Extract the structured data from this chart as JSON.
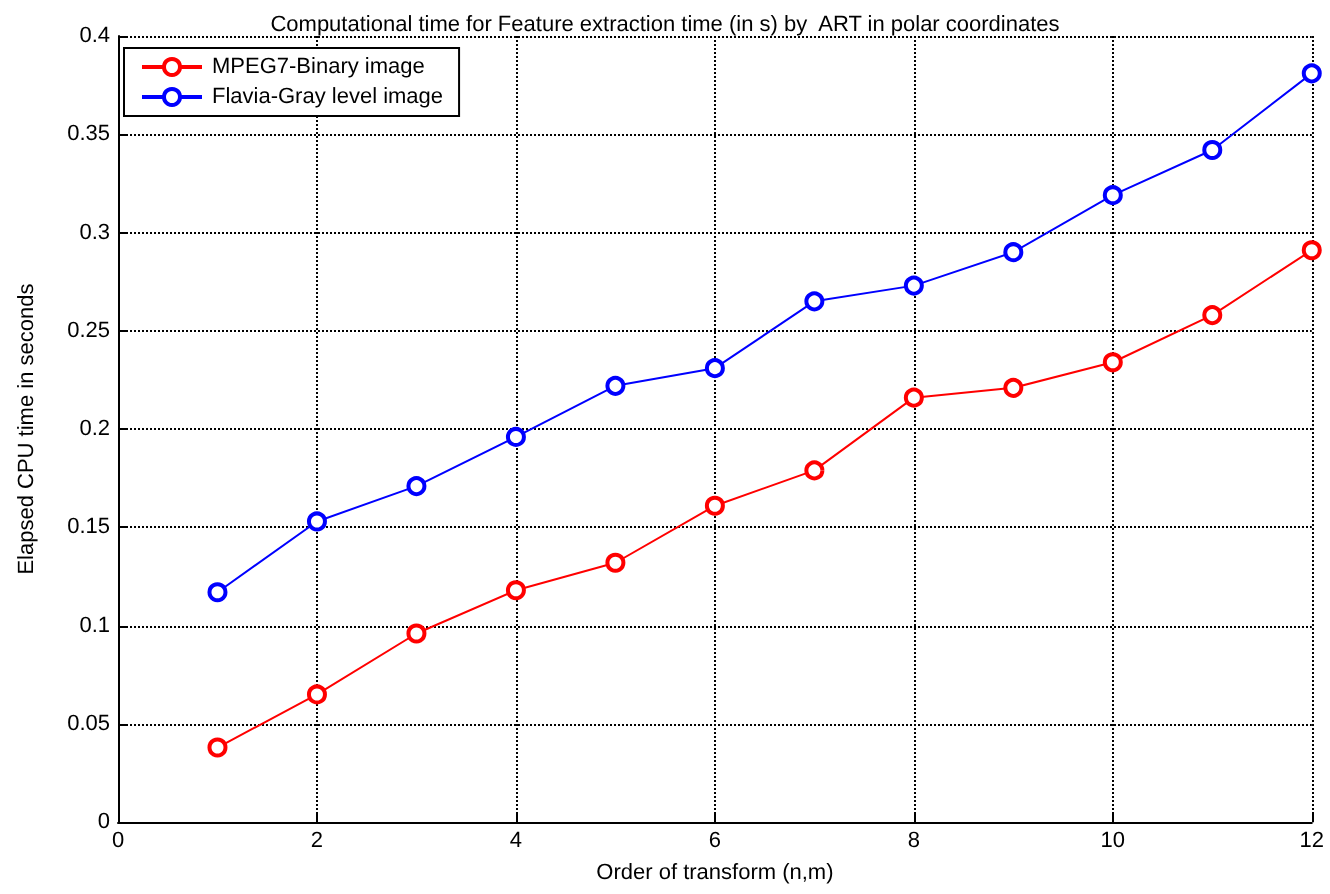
{
  "chart_data": {
    "type": "line",
    "title": "Computational time for Feature extraction time (in s) by  ART in polar coordinates",
    "xlabel": "Order of transform (n,m)",
    "ylabel": "Elapsed CPU time in seconds",
    "x": [
      1,
      2,
      3,
      4,
      5,
      6,
      7,
      8,
      9,
      10,
      11,
      12
    ],
    "series": [
      {
        "name": "MPEG7-Binary image",
        "color": "#ff0000",
        "values": [
          0.038,
          0.065,
          0.096,
          0.118,
          0.132,
          0.161,
          0.179,
          0.216,
          0.221,
          0.234,
          0.258,
          0.291
        ]
      },
      {
        "name": "Flavia-Gray level image",
        "color": "#0000ff",
        "values": [
          0.117,
          0.153,
          0.171,
          0.196,
          0.222,
          0.231,
          0.265,
          0.273,
          0.29,
          0.319,
          0.342,
          0.381
        ]
      }
    ],
    "xlim": [
      0,
      12
    ],
    "xticks": [
      0,
      2,
      4,
      6,
      8,
      10,
      12
    ],
    "ylim": [
      0,
      0.4
    ],
    "yticks": [
      0,
      0.05,
      0.1,
      0.15,
      0.2,
      0.25,
      0.3,
      0.35,
      0.4
    ],
    "grid": true,
    "legend": "top left",
    "marker": "circle",
    "line_style": "solid"
  }
}
